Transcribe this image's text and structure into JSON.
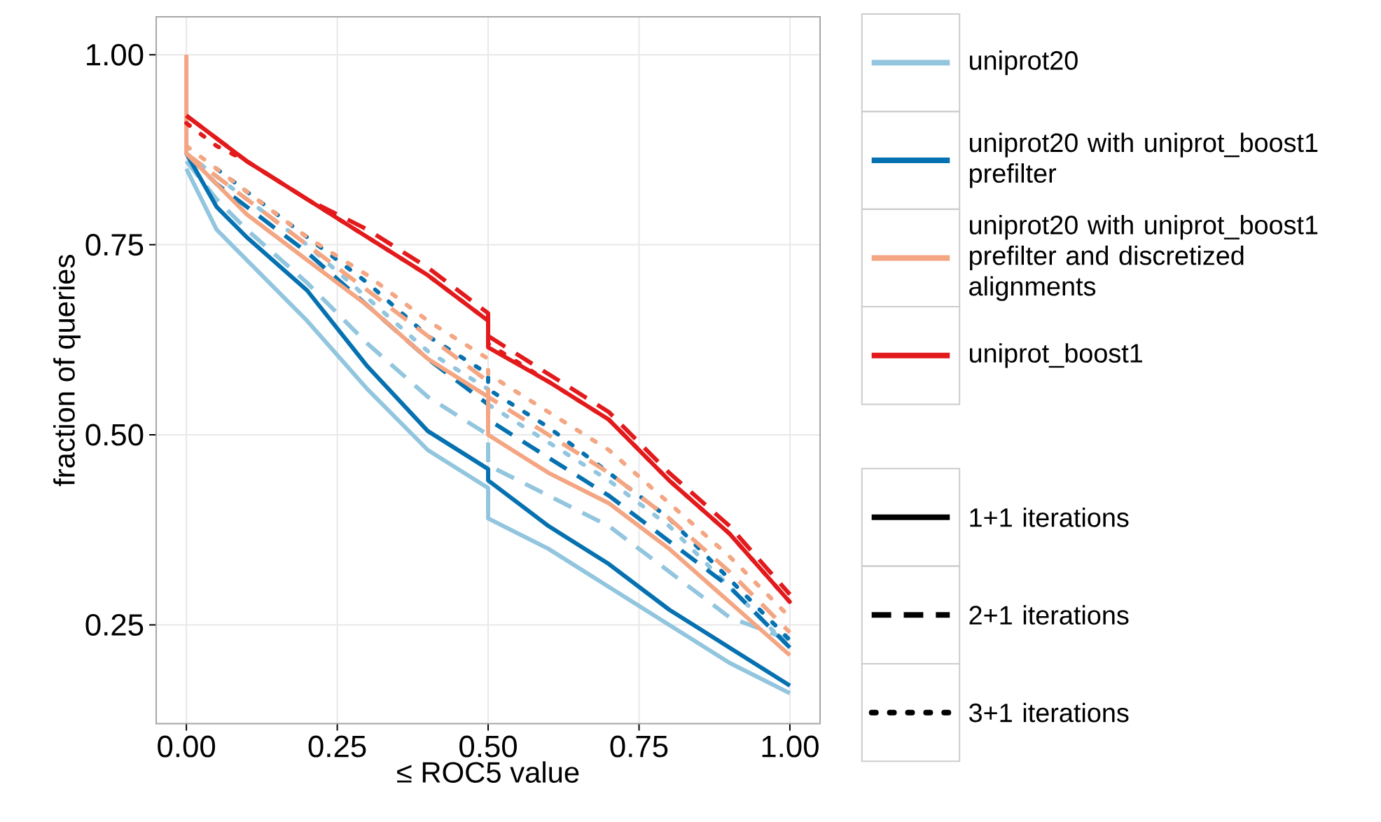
{
  "chart_data": {
    "type": "line",
    "xlabel": "≤ ROC5 value",
    "ylabel": "fraction of queries",
    "x": [
      0,
      0,
      0.05,
      0.1,
      0.2,
      0.3,
      0.4,
      0.5,
      0.5,
      0.6,
      0.7,
      0.8,
      0.9,
      1.0
    ],
    "xlim": [
      -0.05,
      1.05
    ],
    "ylim": [
      0.12,
      1.05
    ],
    "xticks": [
      {
        "value": 0,
        "label": "0.00"
      },
      {
        "value": 0.25,
        "label": "0.25"
      },
      {
        "value": 0.5,
        "label": "0.50"
      },
      {
        "value": 0.75,
        "label": "0.75"
      },
      {
        "value": 1,
        "label": "1.00"
      }
    ],
    "yticks": [
      {
        "value": 0.25,
        "label": "0.25"
      },
      {
        "value": 0.5,
        "label": "0.50"
      },
      {
        "value": 0.75,
        "label": "0.75"
      },
      {
        "value": 1,
        "label": "1.00"
      }
    ],
    "grid": true,
    "legend": "right",
    "series": [
      {
        "name": "uniprot20",
        "color": "#92c5de",
        "line_style": "solid",
        "values": [
          null,
          0.85,
          0.77,
          0.73,
          0.65,
          0.56,
          0.48,
          0.43,
          0.39,
          0.35,
          0.3,
          0.25,
          0.2,
          0.16
        ]
      },
      {
        "color": "#92c5de",
        "line_style": "dashed",
        "values": [
          null,
          0.86,
          0.81,
          0.77,
          0.7,
          0.62,
          0.55,
          0.5,
          0.46,
          0.42,
          0.38,
          0.32,
          0.26,
          0.23
        ]
      },
      {
        "color": "#92c5de",
        "line_style": "dotted",
        "values": [
          null,
          0.87,
          0.84,
          0.81,
          0.75,
          0.68,
          0.61,
          0.56,
          0.54,
          0.49,
          0.44,
          0.38,
          0.3,
          0.22
        ]
      },
      {
        "name": "uniprot20 with uniprot_boost1 prefilter",
        "color": "#0571b0",
        "line_style": "solid",
        "values": [
          null,
          0.87,
          0.8,
          0.76,
          0.69,
          0.59,
          0.505,
          0.455,
          0.44,
          0.38,
          0.33,
          0.27,
          0.22,
          0.17
        ]
      },
      {
        "color": "#0571b0",
        "line_style": "dashed",
        "values": [
          null,
          0.87,
          0.83,
          0.8,
          0.74,
          0.67,
          0.6,
          0.54,
          0.52,
          0.47,
          0.42,
          0.36,
          0.3,
          0.22
        ]
      },
      {
        "color": "#0571b0",
        "line_style": "dotted",
        "values": [
          null,
          null,
          0.85,
          0.82,
          0.76,
          0.7,
          0.63,
          0.58,
          0.56,
          0.51,
          0.45,
          0.39,
          0.31,
          0.23
        ]
      },
      {
        "name": "uniprot20 with uniprot_boost1 prefilter and discretized alignments",
        "color": "#f4a582",
        "line_style": "solid",
        "values": [
          1.0,
          0.87,
          0.83,
          0.79,
          0.73,
          0.67,
          0.6,
          0.55,
          0.5,
          0.45,
          0.41,
          0.35,
          0.28,
          0.21
        ]
      },
      {
        "color": "#f4a582",
        "line_style": "dashed",
        "values": [
          null,
          0.87,
          0.84,
          0.81,
          0.75,
          0.69,
          0.63,
          0.57,
          0.55,
          0.5,
          0.45,
          0.39,
          0.32,
          0.24
        ]
      },
      {
        "color": "#f4a582",
        "line_style": "dotted",
        "values": [
          null,
          0.88,
          0.85,
          0.82,
          0.76,
          0.71,
          0.65,
          0.6,
          0.58,
          0.53,
          0.48,
          0.41,
          0.34,
          0.26
        ]
      },
      {
        "name": "uniprot_boost1",
        "color": "#e31a1c",
        "line_style": "solid",
        "values": [
          null,
          0.92,
          0.89,
          0.86,
          0.81,
          0.76,
          0.71,
          0.65,
          0.615,
          0.57,
          0.52,
          0.44,
          0.37,
          0.28
        ]
      },
      {
        "color": "#e31a1c",
        "line_style": "dashed",
        "values": [
          null,
          0.92,
          0.89,
          0.86,
          0.81,
          0.77,
          0.72,
          0.66,
          0.63,
          0.58,
          0.53,
          0.45,
          0.38,
          0.29
        ]
      },
      {
        "color": "#e31a1c",
        "line_style": "dotted",
        "values": [
          null,
          0.91,
          0.88,
          0.86,
          0.81,
          0.76,
          0.71,
          0.65,
          0.62,
          0.57,
          0.52,
          0.44,
          0.37,
          0.28
        ]
      },
      {
        "name": "1+1 iterations",
        "color": "#000000",
        "line_style": "solid",
        "values": [
          null,
          null,
          null,
          null,
          null,
          null,
          null,
          null,
          null,
          null,
          null,
          null,
          null,
          null
        ]
      },
      {
        "name": "2+1 iterations",
        "color": "#000000",
        "line_style": "dashed",
        "values": [
          null,
          null,
          null,
          null,
          null,
          null,
          null,
          null,
          null,
          null,
          null,
          null,
          null,
          null
        ]
      },
      {
        "name": "3+1 iterations",
        "color": "#000000",
        "line_style": "dotted",
        "values": [
          null,
          null,
          null,
          null,
          null,
          null,
          null,
          null,
          null,
          null,
          null,
          null,
          null,
          null
        ]
      }
    ]
  }
}
